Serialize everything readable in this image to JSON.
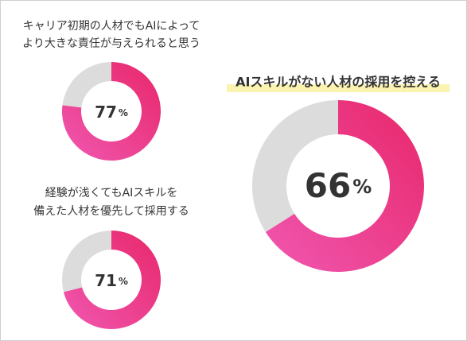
{
  "chart_data": [
    {
      "type": "donut",
      "title": [
        "キャリア初期の人材でもAIによって",
        "より大きな責任が与えられると思う"
      ],
      "values": [
        77,
        23
      ],
      "unit": "%",
      "colors": [
        "#ec3f8c",
        "#dcdcdc"
      ]
    },
    {
      "type": "donut",
      "title": [
        "経験が浅くてもAIスキルを",
        "備えた人材を優先して採用する"
      ],
      "values": [
        71,
        29
      ],
      "unit": "%",
      "colors": [
        "#ec3f8c",
        "#dcdcdc"
      ]
    },
    {
      "type": "donut",
      "title": [
        "AIスキルがない人材の採用を控える"
      ],
      "values": [
        66,
        34
      ],
      "unit": "%",
      "colors": [
        "#ec3f8c",
        "#dcdcdc"
      ],
      "highlight": true
    }
  ]
}
